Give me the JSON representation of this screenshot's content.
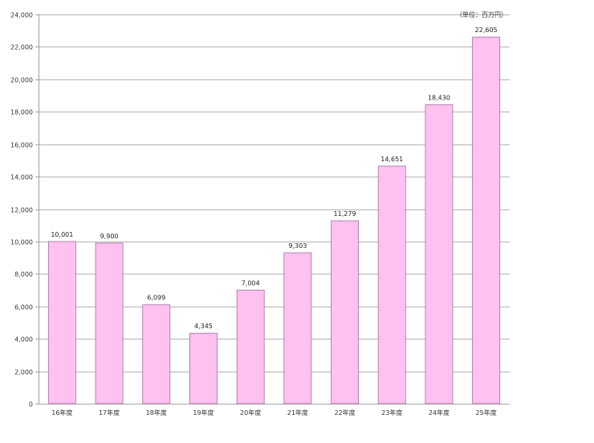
{
  "chart_data": {
    "type": "bar",
    "unit": "（単位：百万円）",
    "categories": [
      "16年度",
      "17年度",
      "18年度",
      "19年度",
      "20年度",
      "21年度",
      "22年度",
      "23年度",
      "24年度",
      "25年度"
    ],
    "values": [
      10001,
      9900,
      6099,
      4345,
      7004,
      9303,
      11279,
      14651,
      18430,
      22605
    ],
    "value_labels": [
      "10,001",
      "9,900",
      "6,099",
      "4,345",
      "7,004",
      "9,303",
      "11,279",
      "14,651",
      "18,430",
      "22,605"
    ],
    "y_ticks": [
      0,
      2000,
      4000,
      6000,
      8000,
      10000,
      12000,
      14000,
      16000,
      18000,
      20000,
      22000,
      24000
    ],
    "y_tick_labels": [
      "0",
      "2,000",
      "4,000",
      "6,000",
      "8,000",
      "10,000",
      "12,000",
      "14,000",
      "16,000",
      "18,000",
      "20,000",
      "22,000",
      "24,000"
    ],
    "ylim": [
      0,
      24000
    ],
    "grid": true,
    "bar_color": "#ffc1ef",
    "bar_stroke": "#a070a0",
    "grid_color": "#999999"
  }
}
